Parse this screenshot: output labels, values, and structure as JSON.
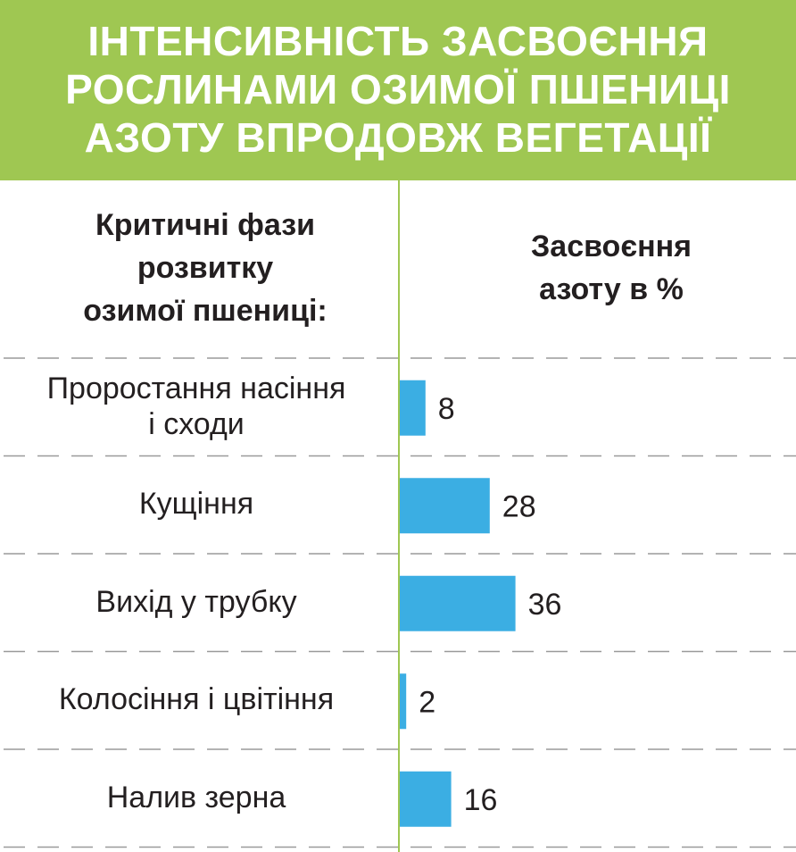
{
  "title": {
    "lines": [
      "ІНТЕНСИВНІСТЬ ЗАСВОЄННЯ",
      "РОСЛИНАМИ ОЗИМОЇ ПШЕНИЦІ",
      "АЗОТУ ВПРОДОВЖ ВЕГЕТАЦІЇ"
    ]
  },
  "headers": {
    "left": [
      "Критичні фази",
      "розвитку",
      "озимої пшениці:"
    ],
    "right": [
      "Засвоєння",
      "азоту в %"
    ]
  },
  "colors": {
    "accent": "#9fc752",
    "bar": "#3baee3",
    "text": "#231f20"
  },
  "chart_data": {
    "type": "bar",
    "orientation": "horizontal",
    "title": "ІНТЕНСИВНІСТЬ ЗАСВОЄННЯ РОСЛИНАМИ ОЗИМОЇ ПШЕНИЦІ АЗОТУ ВПРОДОВЖ ВЕГЕТАЦІЇ",
    "categories": [
      [
        "Проростання насіння",
        "і сходи"
      ],
      [
        "Кущіння"
      ],
      [
        "Вихід у трубку"
      ],
      [
        "Колосіння і цвітіння"
      ],
      [
        "Налив зерна"
      ]
    ],
    "values": [
      8,
      28,
      36,
      2,
      16
    ],
    "value_labels": [
      "8",
      "28",
      "36",
      "2",
      "16"
    ],
    "xlim": [
      0,
      100
    ],
    "grid": false,
    "legend": "none"
  }
}
